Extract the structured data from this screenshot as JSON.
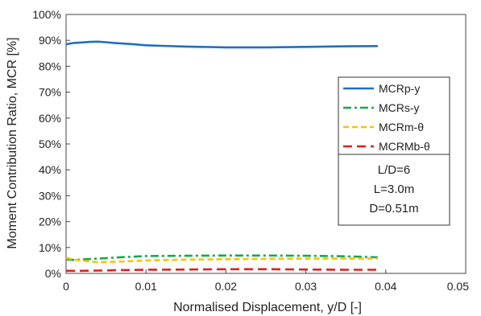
{
  "chart_data": {
    "type": "line",
    "xlabel": "Normalised Displacement, y/D [-]",
    "ylabel": "Moment Contribution Ratio, MCR  [%]",
    "xlim": [
      0,
      0.05
    ],
    "ylim": [
      0,
      100
    ],
    "x_ticks": [
      "0",
      "0.01",
      "0.02",
      "0.03",
      "0.04",
      "0.05"
    ],
    "y_ticks": [
      "0%",
      "10%",
      "20%",
      "30%",
      "40%",
      "50%",
      "60%",
      "70%",
      "80%",
      "90%",
      "100%"
    ],
    "grid": false,
    "legend_position": "right",
    "series": [
      {
        "name": "MCRp-y",
        "color": "#1f6fc1",
        "dash": "solid",
        "x": [
          0,
          0.001,
          0.002,
          0.003,
          0.004,
          0.005,
          0.006,
          0.008,
          0.01,
          0.012,
          0.015,
          0.02,
          0.025,
          0.03,
          0.035,
          0.039
        ],
        "y": [
          88.5,
          89.0,
          89.2,
          89.4,
          89.5,
          89.3,
          89.0,
          88.6,
          88.1,
          87.9,
          87.6,
          87.3,
          87.3,
          87.5,
          87.7,
          87.8
        ]
      },
      {
        "name": "MCRs-y",
        "color": "#17a84c",
        "dash": "dashdot",
        "x": [
          0,
          0.001,
          0.002,
          0.004,
          0.006,
          0.008,
          0.01,
          0.015,
          0.02,
          0.025,
          0.03,
          0.035,
          0.039
        ],
        "y": [
          5.4,
          5.2,
          5.4,
          5.7,
          6.1,
          6.4,
          6.7,
          6.8,
          6.9,
          6.9,
          6.8,
          6.6,
          6.2
        ]
      },
      {
        "name": "MCRm-θ",
        "color": "#ffc000",
        "dash": "dash",
        "x": [
          0,
          0.001,
          0.002,
          0.004,
          0.006,
          0.008,
          0.01,
          0.015,
          0.02,
          0.025,
          0.03,
          0.035,
          0.039
        ],
        "y": [
          6.0,
          5.3,
          4.9,
          4.3,
          4.5,
          4.7,
          5.0,
          5.3,
          5.5,
          5.6,
          5.7,
          5.7,
          5.7
        ]
      },
      {
        "name": "MCRMb-θ",
        "color": "#e81b1b",
        "dash": "longdash",
        "x": [
          0,
          0.002,
          0.004,
          0.006,
          0.008,
          0.01,
          0.015,
          0.02,
          0.025,
          0.03,
          0.035,
          0.039
        ],
        "y": [
          1.0,
          1.0,
          1.1,
          1.2,
          1.3,
          1.4,
          1.5,
          1.6,
          1.6,
          1.5,
          1.4,
          1.4
        ]
      }
    ],
    "annotation": [
      "L/D=6",
      "L=3.0m",
      "D=0.51m"
    ]
  }
}
